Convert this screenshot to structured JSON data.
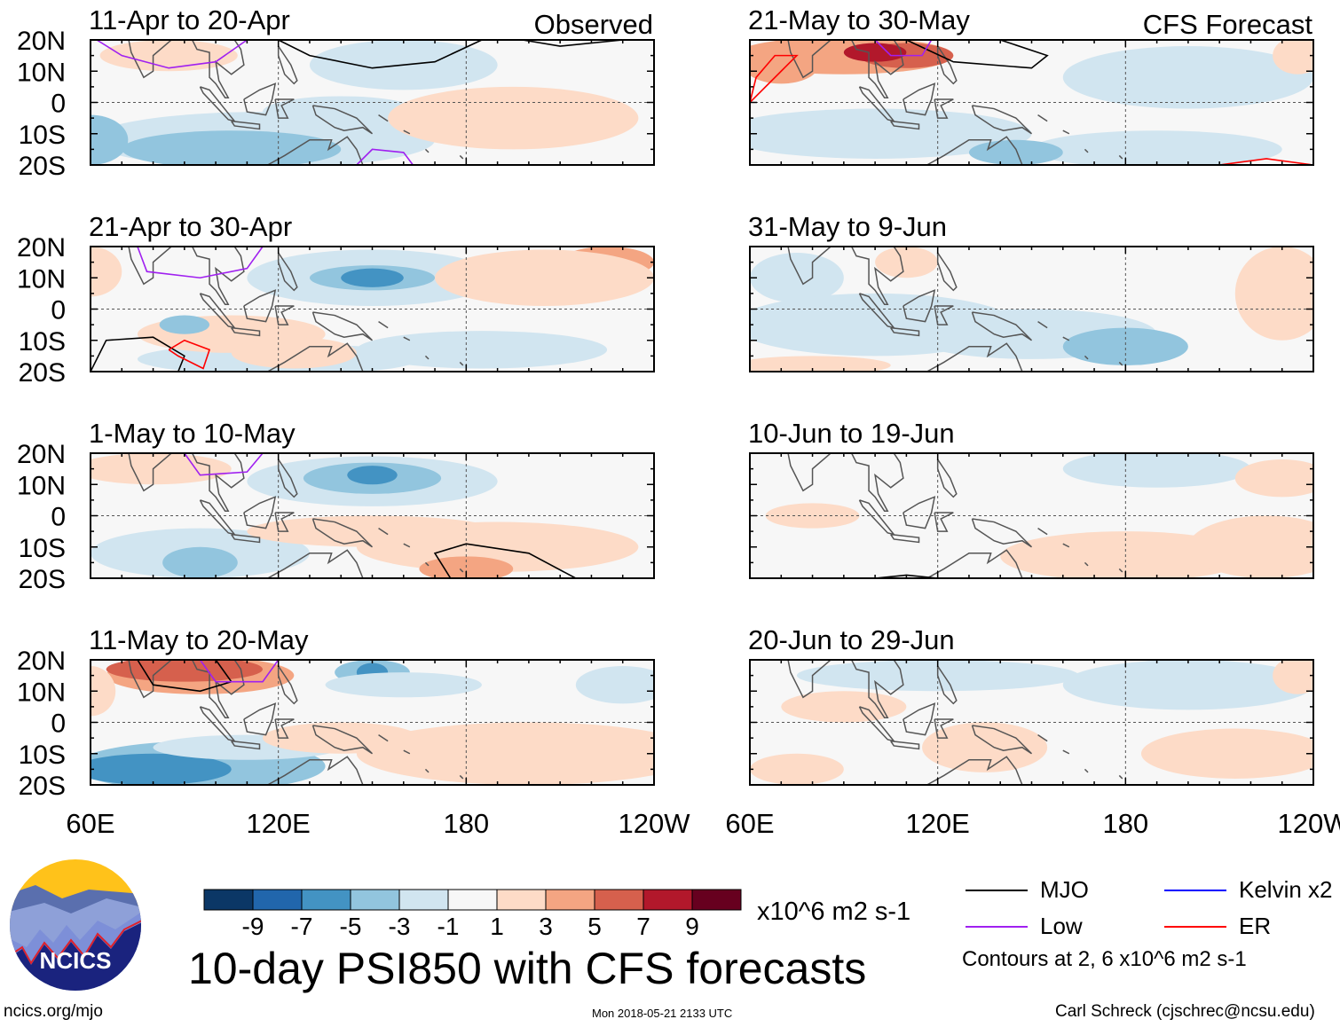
{
  "chart_data": {
    "type": "heatmap",
    "title": "10-day PSI850 with CFS forecasts",
    "units": "x10^6 m2 s-1",
    "lon_range": [
      60,
      240
    ],
    "lat_range": [
      -20,
      20
    ],
    "lon_ticks": [
      "60E",
      "120E",
      "180",
      "120W"
    ],
    "lat_ticks": [
      "20N",
      "10N",
      "0",
      "10S",
      "20S"
    ],
    "colorbar": {
      "levels": [
        "-9",
        "-7",
        "-5",
        "-3",
        "-1",
        "1",
        "3",
        "5",
        "7",
        "9"
      ],
      "colors": [
        "#0b3766",
        "#2166ac",
        "#4393c3",
        "#92c5de",
        "#d1e5f0",
        "#f7f7f7",
        "#fddbc7",
        "#f4a582",
        "#d6604d",
        "#b2182b",
        "#67001f"
      ]
    },
    "columns": [
      {
        "header": "Observed",
        "panels": [
          {
            "title": "11-Apr to 20-Apr",
            "blobs": [
              [
                85,
                15,
                22,
                5,
                6
              ],
              [
                180,
                15,
                30,
                6,
                5
              ],
              [
                160,
                12,
                30,
                8,
                4
              ],
              [
                115,
                -12,
                55,
                9,
                4
              ],
              [
                105,
                -15,
                35,
                6,
                3
              ],
              [
                140,
                -3,
                25,
                5,
                4
              ],
              [
                60,
                -12,
                12,
                8,
                3
              ],
              [
                195,
                -5,
                40,
                10,
                6
              ]
            ],
            "contours": [
              {
                "type": "MJO",
                "pts": [
                  [
                    120,
                    20
                  ],
                  [
                    130,
                    15
                  ],
                  [
                    150,
                    11
                  ],
                  [
                    170,
                    13
                  ],
                  [
                    185,
                    20
                  ]
                ]
              },
              {
                "type": "MJO",
                "pts": [
                  [
                    198,
                    20
                  ],
                  [
                    210,
                    18
                  ],
                  [
                    230,
                    20
                  ]
                ]
              },
              {
                "type": "Low",
                "pts": [
                  [
                    62,
                    20
                  ],
                  [
                    70,
                    15
                  ],
                  [
                    85,
                    11
                  ],
                  [
                    100,
                    13
                  ],
                  [
                    110,
                    20
                  ]
                ]
              },
              {
                "type": "Low",
                "pts": [
                  [
                    145,
                    -20
                  ],
                  [
                    150,
                    -15
                  ],
                  [
                    160,
                    -16
                  ],
                  [
                    163,
                    -20
                  ]
                ]
              }
            ]
          },
          {
            "title": "21-Apr to 30-Apr",
            "blobs": [
              [
                150,
                10,
                40,
                9,
                4
              ],
              [
                150,
                10,
                20,
                4,
                3
              ],
              [
                150,
                10,
                10,
                3,
                2
              ],
              [
                225,
                15,
                15,
                5,
                7
              ],
              [
                205,
                10,
                35,
                9,
                6
              ],
              [
                60,
                12,
                10,
                8,
                6
              ],
              [
                120,
                -16,
                45,
                5,
                4
              ],
              [
                105,
                -8,
                30,
                6,
                6
              ],
              [
                125,
                -14,
                20,
                5,
                6
              ],
              [
                185,
                -13,
                40,
                6,
                4
              ],
              [
                90,
                -5,
                8,
                3,
                3
              ]
            ],
            "contours": [
              {
                "type": "MJO",
                "pts": [
                  [
                    60,
                    -20
                  ],
                  [
                    65,
                    -10
                  ],
                  [
                    80,
                    -9
                  ],
                  [
                    90,
                    -15
                  ],
                  [
                    88,
                    -20
                  ]
                ]
              },
              {
                "type": "ER",
                "pts": [
                  [
                    85,
                    -13
                  ],
                  [
                    90,
                    -10
                  ],
                  [
                    98,
                    -13
                  ],
                  [
                    96,
                    -19
                  ],
                  [
                    88,
                    -15
                  ],
                  [
                    85,
                    -13
                  ]
                ]
              },
              {
                "type": "Low",
                "pts": [
                  [
                    75,
                    20
                  ],
                  [
                    78,
                    12
                  ],
                  [
                    95,
                    10
                  ],
                  [
                    110,
                    13
                  ],
                  [
                    115,
                    20
                  ]
                ]
              }
            ]
          },
          {
            "title": "1-May to 10-May",
            "blobs": [
              [
                150,
                11,
                40,
                8,
                4
              ],
              [
                150,
                12,
                22,
                5,
                3
              ],
              [
                150,
                13,
                8,
                3,
                2
              ],
              [
                95,
                -12,
                35,
                8,
                4
              ],
              [
                95,
                -15,
                12,
                5,
                3
              ],
              [
                150,
                -5,
                40,
                5,
                6
              ],
              [
                190,
                -10,
                45,
                8,
                6
              ],
              [
                180,
                -17,
                15,
                4,
                7
              ],
              [
                80,
                15,
                25,
                5,
                6
              ]
            ],
            "contours": [
              {
                "type": "MJO",
                "pts": [
                  [
                    175,
                    -20
                  ],
                  [
                    170,
                    -12
                  ],
                  [
                    180,
                    -9
                  ],
                  [
                    200,
                    -12
                  ],
                  [
                    215,
                    -20
                  ]
                ]
              },
              {
                "type": "Low",
                "pts": [
                  [
                    90,
                    20
                  ],
                  [
                    95,
                    13
                  ],
                  [
                    110,
                    14
                  ],
                  [
                    115,
                    20
                  ]
                ]
              }
            ]
          },
          {
            "title": "11-May to 20-May",
            "blobs": [
              [
                95,
                15,
                30,
                6,
                7
              ],
              [
                90,
                17,
                25,
                4,
                8
              ],
              [
                60,
                10,
                8,
                8,
                6
              ],
              [
                150,
                16,
                12,
                4,
                3
              ],
              [
                150,
                16,
                5,
                3,
                2
              ],
              [
                95,
                -14,
                40,
                8,
                3
              ],
              [
                80,
                -15,
                25,
                5,
                2
              ],
              [
                110,
                -8,
                30,
                4,
                4
              ],
              [
                200,
                -10,
                55,
                10,
                6
              ],
              [
                140,
                -5,
                25,
                5,
                6
              ],
              [
                160,
                12,
                25,
                4,
                4
              ],
              [
                230,
                12,
                15,
                6,
                4
              ]
            ],
            "contours": [
              {
                "type": "MJO",
                "pts": [
                  [
                    75,
                    20
                  ],
                  [
                    80,
                    12
                  ],
                  [
                    95,
                    10
                  ],
                  [
                    105,
                    13
                  ],
                  [
                    100,
                    20
                  ]
                ]
              },
              {
                "type": "Low",
                "pts": [
                  [
                    95,
                    20
                  ],
                  [
                    100,
                    13
                  ],
                  [
                    115,
                    13
                  ],
                  [
                    120,
                    20
                  ]
                ]
              }
            ]
          }
        ]
      },
      {
        "header": "CFS Forecast",
        "panels": [
          {
            "title": "21-May to 30-May",
            "blobs": [
              [
                90,
                15,
                35,
                6,
                7
              ],
              [
                110,
                15,
                15,
                4,
                8
              ],
              [
                100,
                16,
                10,
                3,
                9
              ],
              [
                70,
                12,
                12,
                6,
                7
              ],
              [
                200,
                8,
                40,
                10,
                4
              ],
              [
                100,
                -10,
                50,
                8,
                4
              ],
              [
                190,
                -15,
                40,
                6,
                4
              ],
              [
                235,
                15,
                8,
                6,
                6
              ],
              [
                145,
                -16,
                15,
                4,
                3
              ]
            ],
            "contours": [
              {
                "type": "MJO",
                "pts": [
                  [
                    110,
                    20
                  ],
                  [
                    125,
                    13
                  ],
                  [
                    150,
                    11
                  ],
                  [
                    155,
                    15
                  ],
                  [
                    140,
                    20
                  ]
                ]
              },
              {
                "type": "ER",
                "pts": [
                  [
                    60,
                    0
                  ],
                  [
                    70,
                    10
                  ],
                  [
                    75,
                    15
                  ],
                  [
                    68,
                    15
                  ],
                  [
                    62,
                    8
                  ],
                  [
                    60,
                    0
                  ]
                ]
              },
              {
                "type": "ER",
                "pts": [
                  [
                    210,
                    -20
                  ],
                  [
                    225,
                    -18
                  ],
                  [
                    240,
                    -20
                  ]
                ]
              },
              {
                "type": "Low",
                "pts": [
                  [
                    100,
                    20
                  ],
                  [
                    105,
                    15
                  ],
                  [
                    115,
                    15
                  ],
                  [
                    118,
                    20
                  ]
                ]
              }
            ]
          },
          {
            "title": "31-May to 9-Jun",
            "blobs": [
              [
                75,
                10,
                15,
                8,
                4
              ],
              [
                100,
                -5,
                45,
                10,
                4
              ],
              [
                150,
                -8,
                40,
                8,
                4
              ],
              [
                180,
                -12,
                20,
                6,
                3
              ],
              [
                230,
                5,
                15,
                15,
                6
              ],
              [
                110,
                15,
                10,
                5,
                6
              ],
              [
                80,
                -18,
                25,
                3,
                6
              ]
            ],
            "contours": []
          },
          {
            "title": "10-Jun to 19-Jun",
            "blobs": [
              [
                190,
                15,
                20,
                4,
                3
              ],
              [
                190,
                15,
                30,
                6,
                4
              ],
              [
                180,
                -13,
                40,
                8,
                6
              ],
              [
                225,
                -10,
                25,
                10,
                6
              ],
              [
                230,
                12,
                15,
                6,
                6
              ],
              [
                80,
                0,
                15,
                4,
                6
              ]
            ],
            "contours": [
              {
                "type": "MJO",
                "pts": [
                  [
                    100,
                    -20
                  ],
                  [
                    110,
                    -19
                  ],
                  [
                    120,
                    -20
                  ]
                ]
              }
            ]
          },
          {
            "title": "20-Jun to 29-Jun",
            "blobs": [
              [
                120,
                15,
                45,
                5,
                4
              ],
              [
                200,
                12,
                40,
                8,
                4
              ],
              [
                90,
                5,
                20,
                5,
                6
              ],
              [
                135,
                -8,
                20,
                8,
                6
              ],
              [
                215,
                -10,
                30,
                8,
                6
              ],
              [
                75,
                -15,
                15,
                5,
                6
              ],
              [
                235,
                15,
                8,
                6,
                6
              ]
            ],
            "contours": []
          }
        ]
      }
    ],
    "legend": [
      {
        "label": "MJO",
        "color": "#000000"
      },
      {
        "label": "Kelvin x2",
        "color": "#0000ff"
      },
      {
        "label": "Low",
        "color": "#a020f0"
      },
      {
        "label": "ER",
        "color": "#ff0000"
      }
    ],
    "contour_note": "Contours at 2, 6 x10^6 m2 s-1"
  },
  "footer": {
    "logo_text": "NCICS",
    "url": "ncics.org/mjo",
    "timestamp": "Mon 2018-05-21 2133 UTC",
    "author": "Carl Schreck (cjschrec@ncsu.edu)"
  }
}
